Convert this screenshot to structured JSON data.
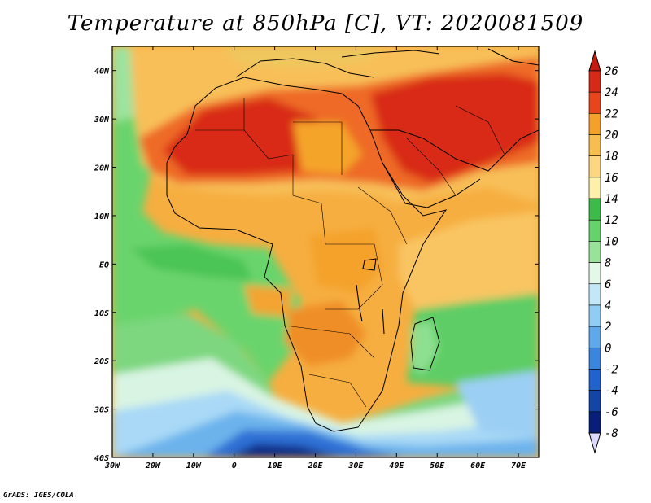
{
  "title": "Temperature at 850hPa [C], VT: 2020081509",
  "credit": "GrADS: IGES/COLA",
  "map": {
    "lon_range": [
      -30,
      75
    ],
    "lat_range": [
      -40,
      45
    ],
    "lon_ticks": [
      {
        "value": -30,
        "label": "30W"
      },
      {
        "value": -20,
        "label": "20W"
      },
      {
        "value": -10,
        "label": "10W"
      },
      {
        "value": 0,
        "label": "0"
      },
      {
        "value": 10,
        "label": "10E"
      },
      {
        "value": 20,
        "label": "20E"
      },
      {
        "value": 30,
        "label": "30E"
      },
      {
        "value": 40,
        "label": "40E"
      },
      {
        "value": 50,
        "label": "50E"
      },
      {
        "value": 60,
        "label": "60E"
      },
      {
        "value": 70,
        "label": "70E"
      }
    ],
    "lat_ticks": [
      {
        "value": 40,
        "label": "40N"
      },
      {
        "value": 30,
        "label": "30N"
      },
      {
        "value": 20,
        "label": "20N"
      },
      {
        "value": 10,
        "label": "10N"
      },
      {
        "value": 0,
        "label": "EQ"
      },
      {
        "value": -10,
        "label": "10S"
      },
      {
        "value": -20,
        "label": "20S"
      },
      {
        "value": -30,
        "label": "30S"
      },
      {
        "value": -40,
        "label": "40S"
      }
    ]
  },
  "colorbar": {
    "levels": [
      {
        "label": "26",
        "color": "#d42a16"
      },
      {
        "label": "24",
        "color": "#e8451c"
      },
      {
        "label": "22",
        "color": "#f5a028"
      },
      {
        "label": "20",
        "color": "#f8bd4f"
      },
      {
        "label": "18",
        "color": "#fcd780"
      },
      {
        "label": "16",
        "color": "#fdf0a8"
      },
      {
        "label": "14",
        "color": "#3cbb48"
      },
      {
        "label": "12",
        "color": "#66d26a"
      },
      {
        "label": "10",
        "color": "#98e29a"
      },
      {
        "label": "8",
        "color": "#e4f8e8"
      },
      {
        "label": "6",
        "color": "#c4e6f9"
      },
      {
        "label": "4",
        "color": "#90cdf3"
      },
      {
        "label": "2",
        "color": "#5fa9ea"
      },
      {
        "label": "0",
        "color": "#3a86de"
      },
      {
        "label": "-2",
        "color": "#2063cc"
      },
      {
        "label": "-4",
        "color": "#1245a6"
      },
      {
        "label": "-6",
        "color": "#081e78"
      },
      {
        "label": "-8",
        "color": "#dcd9ff"
      }
    ],
    "top_arrow_color": "#c41a10"
  }
}
